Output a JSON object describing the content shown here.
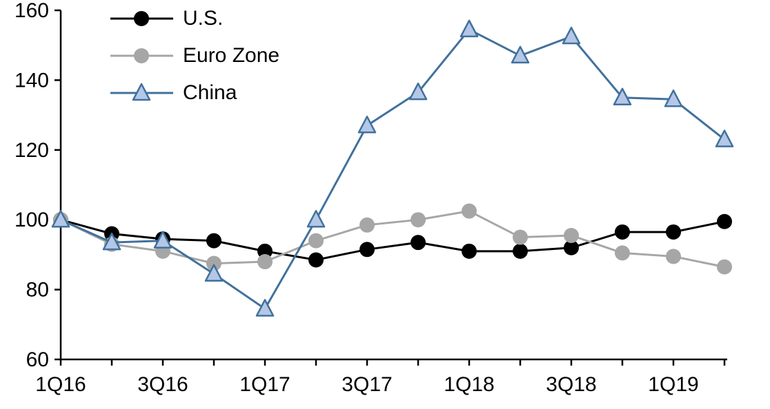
{
  "chart_data": {
    "type": "line",
    "x": [
      "1Q16",
      "2Q16",
      "3Q16",
      "4Q16",
      "1Q17",
      "2Q17",
      "3Q17",
      "4Q17",
      "1Q18",
      "2Q18",
      "3Q18",
      "4Q18",
      "1Q19",
      "2Q19"
    ],
    "x_tick_labels": [
      "1Q16",
      "3Q16",
      "1Q17",
      "3Q17",
      "1Q18",
      "3Q18",
      "1Q19"
    ],
    "yticks": [
      60,
      80,
      100,
      120,
      140,
      160
    ],
    "ylim": [
      60,
      160
    ],
    "grid": false,
    "legend_position": "top-left",
    "title": "",
    "xlabel": "",
    "ylabel": "",
    "series": [
      {
        "name": "U.S.",
        "marker": "circle",
        "color": "#000000",
        "fill": "#000000",
        "values": [
          100,
          96,
          94.5,
          94,
          91,
          88.5,
          91.5,
          93.5,
          91,
          91,
          92,
          96.5,
          96.5,
          99.5
        ]
      },
      {
        "name": "Euro Zone",
        "marker": "circle",
        "color": "#a6a6a6",
        "fill": "#a6a6a6",
        "values": [
          100,
          93,
          91,
          87.5,
          88,
          94,
          98.5,
          100,
          102.5,
          95,
          95.5,
          90.5,
          89.5,
          86.5
        ]
      },
      {
        "name": "China",
        "marker": "triangle",
        "color": "#41719c",
        "fill": "#b4c7e7",
        "values": [
          100,
          93.5,
          94,
          84.5,
          74.5,
          100,
          127,
          136.5,
          154.5,
          147,
          152.5,
          135,
          134.5,
          123
        ]
      }
    ]
  }
}
